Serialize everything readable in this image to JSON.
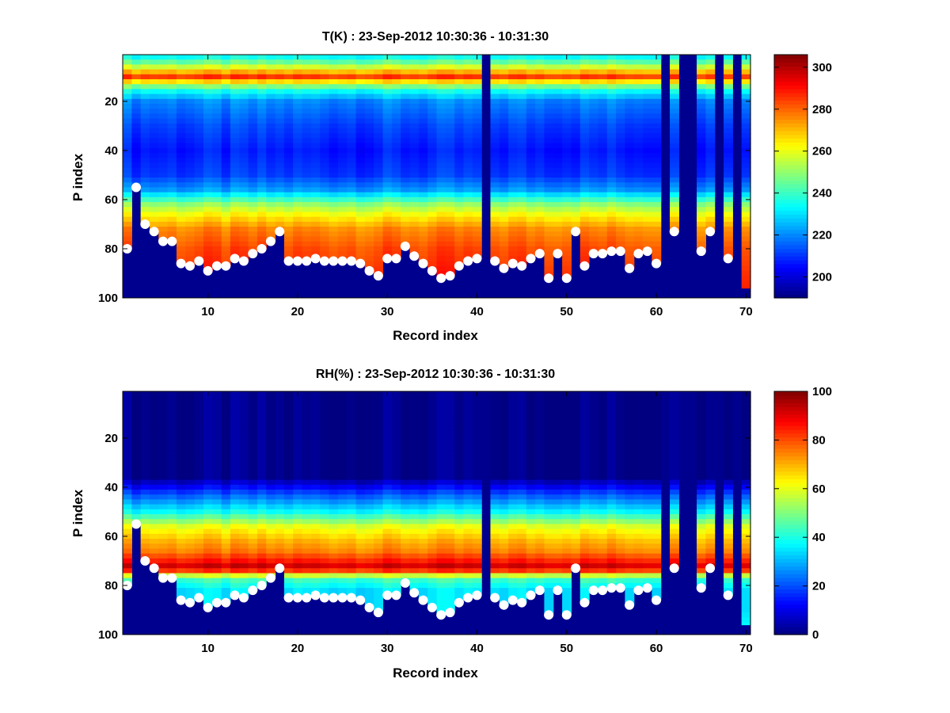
{
  "chart_data": [
    {
      "type": "heatmap",
      "title": "T(K) : 23-Sep-2012 10:30:36 - 10:31:30",
      "xlabel": "Record index",
      "ylabel": "P index",
      "xlim": [
        0.5,
        70.5
      ],
      "ylim": [
        1,
        100
      ],
      "y_reversed": true,
      "x_ticks": [
        "10",
        "20",
        "30",
        "40",
        "50",
        "60",
        "70"
      ],
      "y_ticks": [
        "20",
        "40",
        "60",
        "80",
        "100"
      ],
      "colorbar": {
        "range": [
          190,
          306
        ],
        "ticks": [
          "200",
          "220",
          "240",
          "260",
          "280",
          "300"
        ],
        "colormap": "jet"
      },
      "value_profile": [
        [
          1,
          230
        ],
        [
          5,
          250
        ],
        [
          10,
          285
        ],
        [
          15,
          238
        ],
        [
          20,
          220
        ],
        [
          30,
          212
        ],
        [
          40,
          207
        ],
        [
          50,
          211
        ],
        [
          56,
          222
        ],
        [
          62,
          250
        ],
        [
          66,
          262
        ],
        [
          72,
          276
        ],
        [
          80,
          283
        ],
        [
          90,
          287
        ],
        [
          100,
          290
        ]
      ],
      "surface_index": [
        80,
        55,
        70,
        73,
        77,
        77,
        86,
        87,
        85,
        89,
        87,
        87,
        84,
        85,
        82,
        80,
        77,
        73,
        85,
        85,
        85,
        84,
        85,
        85,
        85,
        85,
        86,
        89,
        91,
        84,
        84,
        79,
        83,
        86,
        89,
        92,
        91,
        87,
        85,
        84,
        0,
        85,
        88,
        86,
        87,
        84,
        82,
        92,
        82,
        92,
        73,
        87,
        82,
        82,
        81,
        81,
        88,
        82,
        81,
        86,
        0,
        73,
        0,
        0,
        81,
        73,
        0,
        84,
        0,
        96
      ],
      "surface_marker_shown": [
        1,
        1,
        1,
        1,
        1,
        1,
        1,
        1,
        1,
        1,
        1,
        1,
        1,
        1,
        1,
        1,
        1,
        1,
        1,
        1,
        1,
        1,
        1,
        1,
        1,
        1,
        1,
        1,
        1,
        1,
        1,
        1,
        1,
        1,
        1,
        1,
        1,
        1,
        1,
        1,
        0,
        1,
        1,
        1,
        1,
        1,
        1,
        1,
        1,
        1,
        1,
        1,
        1,
        1,
        1,
        1,
        1,
        1,
        1,
        1,
        0,
        1,
        0,
        0,
        1,
        1,
        0,
        1,
        0,
        0
      ],
      "missing_records": [
        41,
        61,
        63,
        64,
        67,
        69
      ]
    },
    {
      "type": "heatmap",
      "title": "RH(%) : 23-Sep-2012 10:30:36 - 10:31:30",
      "xlabel": "Record index",
      "ylabel": "P index",
      "xlim": [
        0.5,
        70.5
      ],
      "ylim": [
        1,
        100
      ],
      "y_reversed": true,
      "x_ticks": [
        "10",
        "20",
        "30",
        "40",
        "50",
        "60",
        "70"
      ],
      "y_ticks": [
        "20",
        "40",
        "60",
        "80",
        "100"
      ],
      "colorbar": {
        "range": [
          0,
          100
        ],
        "ticks": [
          "0",
          "20",
          "40",
          "60",
          "80",
          "100"
        ],
        "colormap": "jet"
      },
      "value_profile": [
        [
          1,
          1
        ],
        [
          36,
          1
        ],
        [
          42,
          18
        ],
        [
          50,
          38
        ],
        [
          56,
          60
        ],
        [
          62,
          70
        ],
        [
          66,
          75
        ],
        [
          70,
          85
        ],
        [
          73,
          95
        ],
        [
          77,
          45
        ],
        [
          82,
          35
        ],
        [
          90,
          35
        ],
        [
          100,
          40
        ]
      ],
      "surface_index": [
        80,
        55,
        70,
        73,
        77,
        77,
        86,
        87,
        85,
        89,
        87,
        87,
        84,
        85,
        82,
        80,
        77,
        73,
        85,
        85,
        85,
        84,
        85,
        85,
        85,
        85,
        86,
        89,
        91,
        84,
        84,
        79,
        83,
        86,
        89,
        92,
        91,
        87,
        85,
        84,
        0,
        85,
        88,
        86,
        87,
        84,
        82,
        92,
        82,
        92,
        73,
        87,
        82,
        82,
        81,
        81,
        88,
        82,
        81,
        86,
        0,
        73,
        0,
        0,
        81,
        73,
        0,
        84,
        0,
        96
      ],
      "surface_marker_shown": [
        1,
        1,
        1,
        1,
        1,
        1,
        1,
        1,
        1,
        1,
        1,
        1,
        1,
        1,
        1,
        1,
        1,
        1,
        1,
        1,
        1,
        1,
        1,
        1,
        1,
        1,
        1,
        1,
        1,
        1,
        1,
        1,
        1,
        1,
        1,
        1,
        1,
        1,
        1,
        1,
        0,
        1,
        1,
        1,
        1,
        1,
        1,
        1,
        1,
        1,
        1,
        1,
        1,
        1,
        1,
        1,
        1,
        1,
        1,
        1,
        0,
        1,
        0,
        0,
        1,
        1,
        0,
        1,
        0,
        0
      ],
      "missing_records": [
        41,
        61,
        63,
        64,
        67,
        69
      ]
    }
  ],
  "colors": {
    "background": "#ffffff",
    "marker": "#ffffff",
    "fill_value": "#00008f"
  }
}
